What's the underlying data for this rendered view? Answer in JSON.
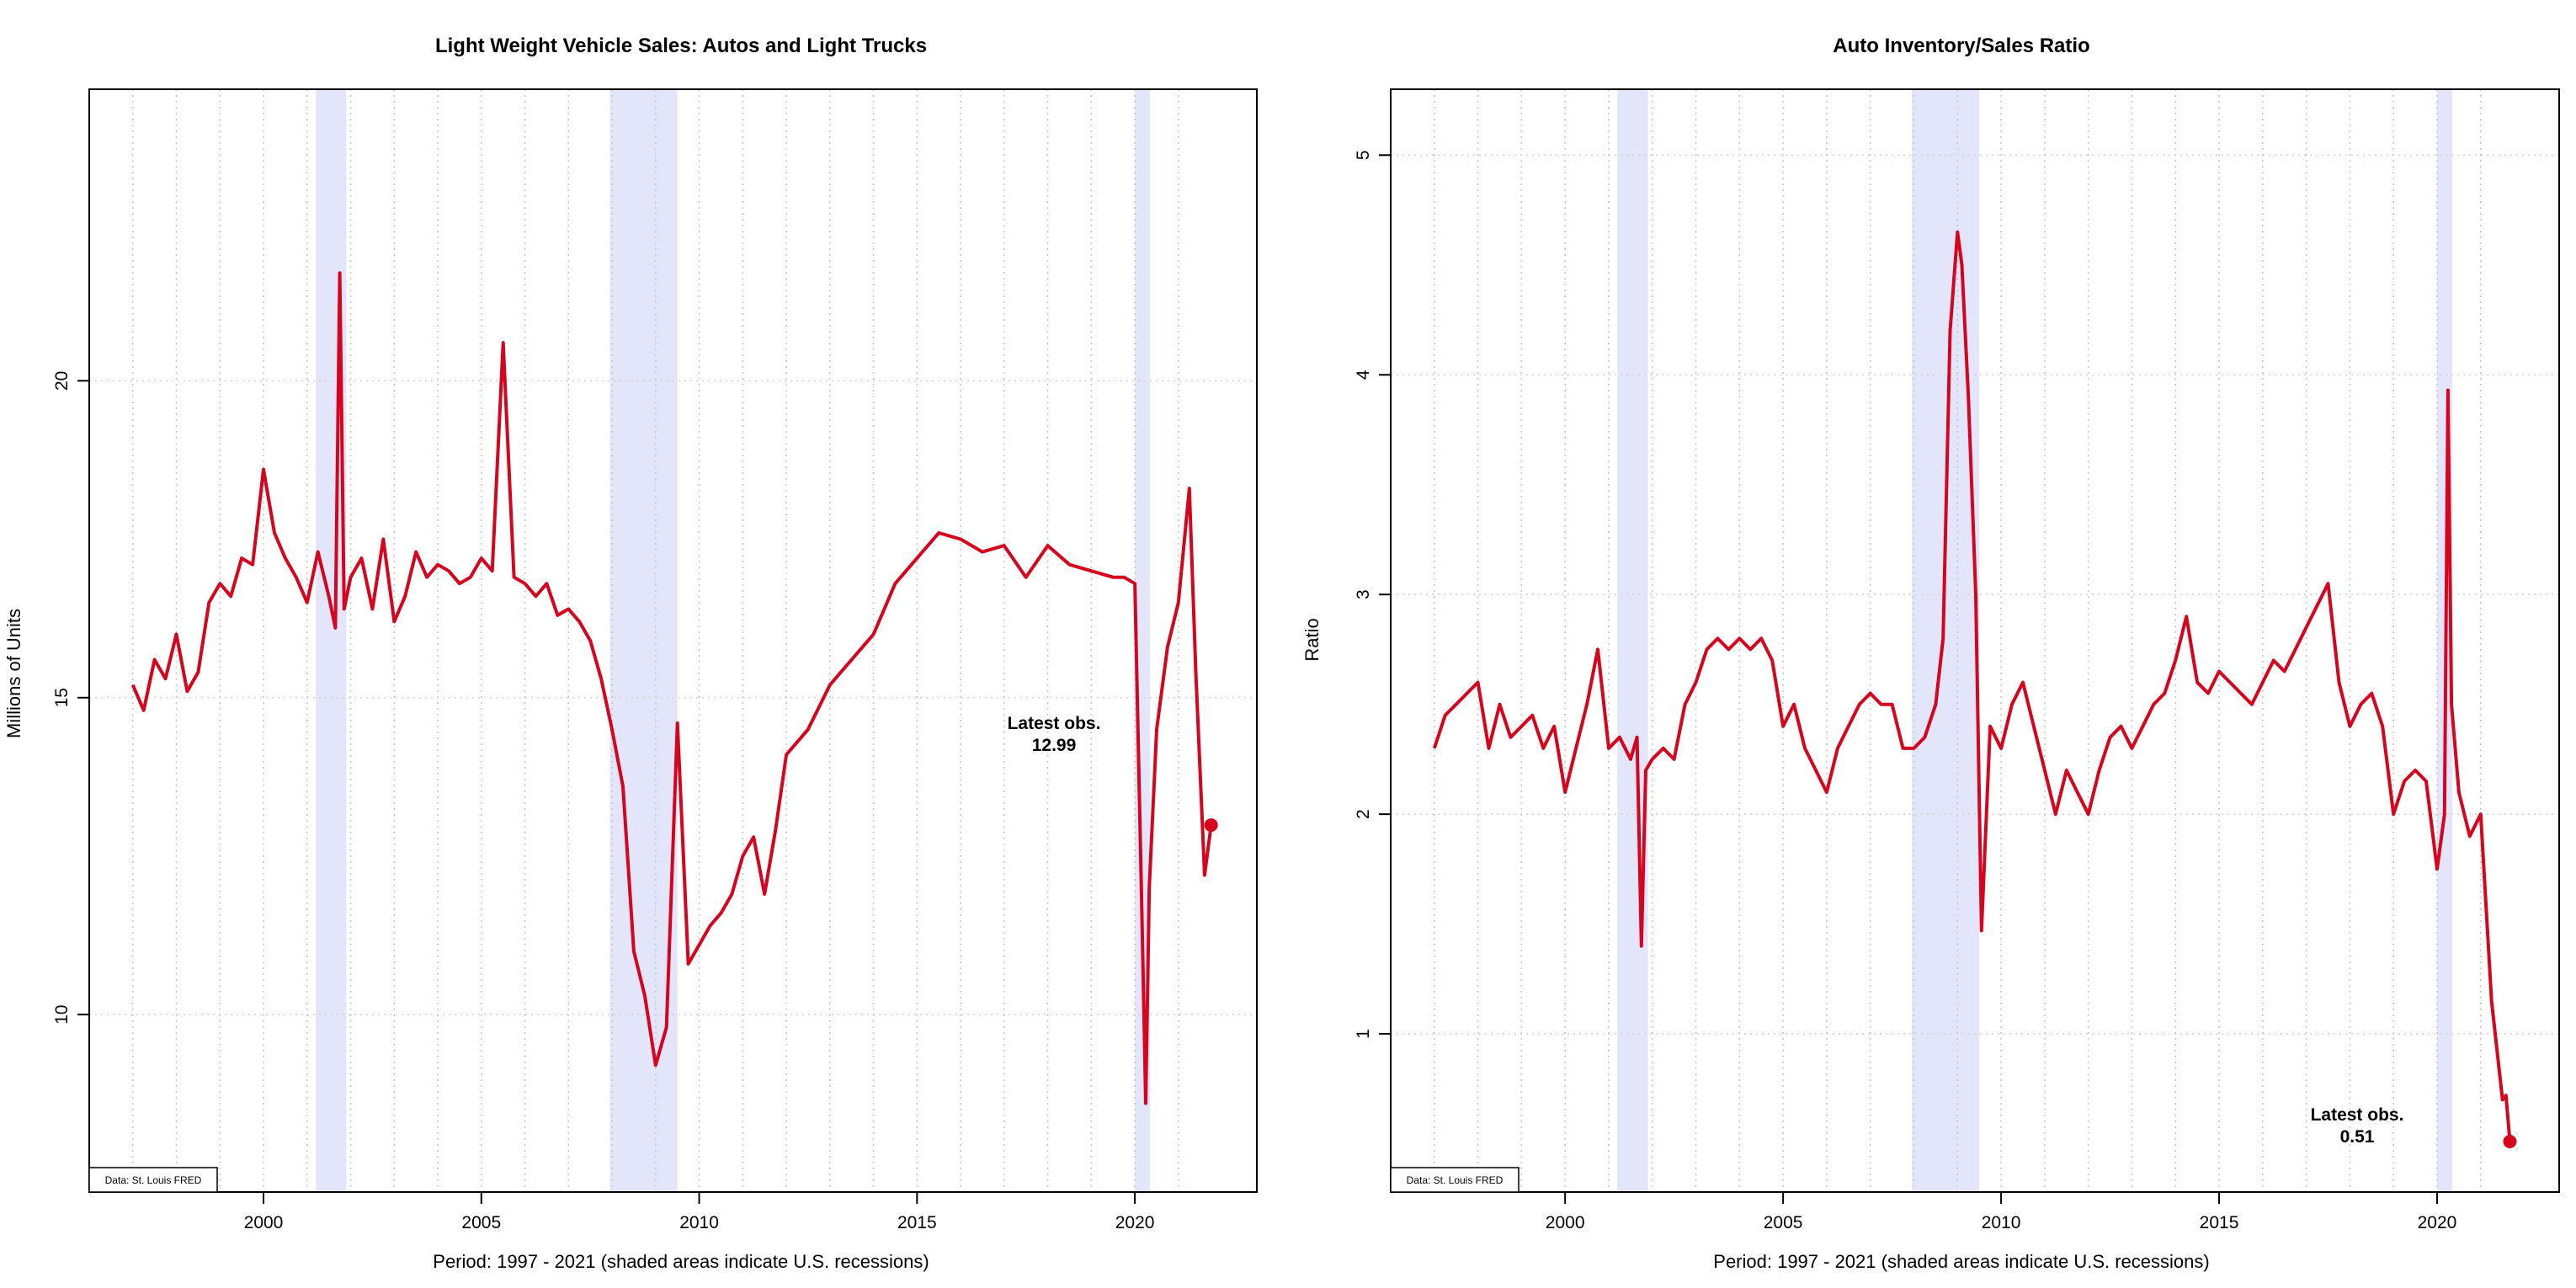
{
  "chart_data": [
    {
      "type": "line",
      "title": "Light Weight Vehicle Sales: Autos and Light Trucks",
      "xlabel": "Period: 1997 - 2021 (shaded areas indicate U.S. recessions)",
      "ylabel": "Millions of Units",
      "xlim": [
        1996.0,
        2022.8
      ],
      "ylim": [
        7.2,
        24.6
      ],
      "x_ticks": [
        2000,
        2005,
        2010,
        2015,
        2020
      ],
      "y_ticks": [
        10,
        15,
        20
      ],
      "grid": true,
      "recessions": [
        [
          2001.2,
          2001.9
        ],
        [
          2007.95,
          2009.5
        ],
        [
          2020.0,
          2020.35
        ]
      ],
      "series": [
        {
          "color": "#d7041e",
          "x": [
            1997.0,
            1997.25,
            1997.5,
            1997.75,
            1998.0,
            1998.25,
            1998.5,
            1998.75,
            1999.0,
            1999.25,
            1999.5,
            1999.75,
            2000.0,
            2000.25,
            2000.5,
            2000.75,
            2001.0,
            2001.25,
            2001.5,
            2001.65,
            2001.75,
            2001.85,
            2002.0,
            2002.25,
            2002.5,
            2002.75,
            2003.0,
            2003.25,
            2003.5,
            2003.75,
            2004.0,
            2004.25,
            2004.5,
            2004.75,
            2005.0,
            2005.25,
            2005.5,
            2005.75,
            2006.0,
            2006.25,
            2006.5,
            2006.75,
            2007.0,
            2007.25,
            2007.5,
            2007.75,
            2008.0,
            2008.25,
            2008.5,
            2008.75,
            2009.0,
            2009.25,
            2009.5,
            2009.75,
            2010.0,
            2010.25,
            2010.5,
            2010.75,
            2011.0,
            2011.25,
            2011.5,
            2011.75,
            2012.0,
            2012.5,
            2013.0,
            2013.5,
            2014.0,
            2014.5,
            2015.0,
            2015.5,
            2016.0,
            2016.5,
            2017.0,
            2017.5,
            2018.0,
            2018.5,
            2019.0,
            2019.5,
            2019.75,
            2020.0,
            2020.17,
            2020.25,
            2020.33,
            2020.5,
            2020.75,
            2021.0,
            2021.25,
            2021.4,
            2021.6,
            2021.75
          ],
          "values": [
            15.2,
            14.8,
            15.6,
            15.3,
            16.0,
            15.1,
            15.4,
            16.5,
            16.8,
            16.6,
            17.2,
            17.1,
            18.6,
            17.6,
            17.2,
            16.9,
            16.5,
            17.3,
            16.6,
            16.1,
            21.7,
            16.4,
            16.9,
            17.2,
            16.4,
            17.5,
            16.2,
            16.6,
            17.3,
            16.9,
            17.1,
            17.0,
            16.8,
            16.9,
            17.2,
            17.0,
            20.6,
            16.9,
            16.8,
            16.6,
            16.8,
            16.3,
            16.4,
            16.2,
            15.9,
            15.3,
            14.5,
            13.6,
            11.0,
            10.3,
            9.2,
            9.8,
            14.6,
            10.8,
            11.1,
            11.4,
            11.6,
            11.9,
            12.5,
            12.8,
            11.9,
            12.9,
            14.1,
            14.5,
            15.2,
            15.6,
            16.0,
            16.8,
            17.2,
            17.6,
            17.5,
            17.3,
            17.4,
            16.9,
            17.4,
            17.1,
            17.0,
            16.9,
            16.9,
            16.8,
            11.3,
            8.6,
            12.0,
            14.5,
            15.8,
            16.5,
            18.3,
            15.4,
            12.2,
            12.99
          ]
        }
      ],
      "latest_obs": {
        "label": "Latest obs.",
        "value": "12.99",
        "x": 2021.75,
        "y": 12.99
      },
      "source": "Data: St. Louis FRED"
    },
    {
      "type": "line",
      "title": "Auto Inventory/Sales Ratio",
      "xlabel": "Period: 1997 - 2021 (shaded areas indicate U.S. recessions)",
      "ylabel": "Ratio",
      "xlim": [
        1996.0,
        2022.8
      ],
      "ylim": [
        0.28,
        5.3
      ],
      "x_ticks": [
        2000,
        2005,
        2010,
        2015,
        2020
      ],
      "y_ticks": [
        1,
        2,
        3,
        4,
        5
      ],
      "grid": true,
      "recessions": [
        [
          2001.2,
          2001.9
        ],
        [
          2007.95,
          2009.5
        ],
        [
          2020.0,
          2020.35
        ]
      ],
      "series": [
        {
          "color": "#d7041e",
          "x": [
            1997.0,
            1997.25,
            1997.5,
            1997.75,
            1998.0,
            1998.25,
            1998.5,
            1998.75,
            1999.0,
            1999.25,
            1999.5,
            1999.75,
            2000.0,
            2000.25,
            2000.5,
            2000.75,
            2001.0,
            2001.25,
            2001.5,
            2001.65,
            2001.75,
            2001.85,
            2002.0,
            2002.25,
            2002.5,
            2002.75,
            2003.0,
            2003.25,
            2003.5,
            2003.75,
            2004.0,
            2004.25,
            2004.5,
            2004.75,
            2005.0,
            2005.25,
            2005.5,
            2005.75,
            2006.0,
            2006.25,
            2006.5,
            2006.75,
            2007.0,
            2007.25,
            2007.5,
            2007.75,
            2008.0,
            2008.25,
            2008.5,
            2008.67,
            2008.83,
            2009.0,
            2009.1,
            2009.25,
            2009.42,
            2009.55,
            2009.75,
            2010.0,
            2010.25,
            2010.5,
            2010.75,
            2011.0,
            2011.25,
            2011.5,
            2011.75,
            2012.0,
            2012.25,
            2012.5,
            2012.75,
            2013.0,
            2013.25,
            2013.5,
            2013.75,
            2014.0,
            2014.25,
            2014.5,
            2014.75,
            2015.0,
            2015.25,
            2015.5,
            2015.75,
            2016.0,
            2016.25,
            2016.5,
            2016.75,
            2017.0,
            2017.25,
            2017.5,
            2017.75,
            2018.0,
            2018.25,
            2018.5,
            2018.75,
            2019.0,
            2019.25,
            2019.5,
            2019.75,
            2020.0,
            2020.17,
            2020.25,
            2020.33,
            2020.5,
            2020.75,
            2021.0,
            2021.25,
            2021.5,
            2021.58,
            2021.67
          ],
          "values": [
            2.3,
            2.45,
            2.5,
            2.55,
            2.6,
            2.3,
            2.5,
            2.35,
            2.4,
            2.45,
            2.3,
            2.4,
            2.1,
            2.3,
            2.5,
            2.75,
            2.3,
            2.35,
            2.25,
            2.35,
            1.4,
            2.2,
            2.25,
            2.3,
            2.25,
            2.5,
            2.6,
            2.75,
            2.8,
            2.75,
            2.8,
            2.75,
            2.8,
            2.7,
            2.4,
            2.5,
            2.3,
            2.2,
            2.1,
            2.3,
            2.4,
            2.5,
            2.55,
            2.5,
            2.5,
            2.3,
            2.3,
            2.35,
            2.5,
            2.8,
            4.2,
            4.65,
            4.5,
            3.9,
            3.0,
            1.47,
            2.4,
            2.3,
            2.5,
            2.6,
            2.4,
            2.2,
            2.0,
            2.2,
            2.1,
            2.0,
            2.2,
            2.35,
            2.4,
            2.3,
            2.4,
            2.5,
            2.55,
            2.7,
            2.9,
            2.6,
            2.55,
            2.65,
            2.6,
            2.55,
            2.5,
            2.6,
            2.7,
            2.65,
            2.75,
            2.85,
            2.95,
            3.05,
            2.6,
            2.4,
            2.5,
            2.55,
            2.4,
            2.0,
            2.15,
            2.2,
            2.15,
            1.75,
            2.0,
            3.93,
            2.5,
            2.1,
            1.9,
            2.0,
            1.15,
            0.7,
            0.72,
            0.51
          ]
        }
      ],
      "latest_obs": {
        "label": "Latest obs.",
        "value": "0.51",
        "x": 2021.67,
        "y": 0.51
      },
      "source": "Data: St. Louis FRED"
    }
  ]
}
